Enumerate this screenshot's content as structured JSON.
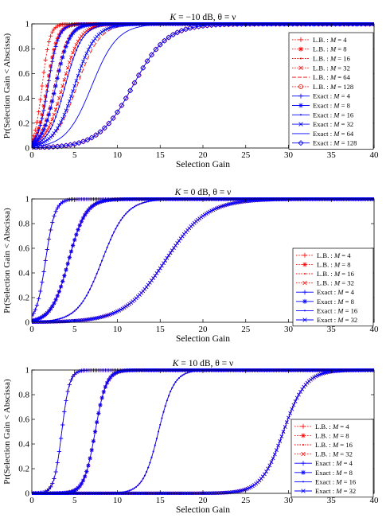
{
  "chart_data": [
    {
      "type": "line",
      "title_parts": [
        "K",
        " = −10 dB, θ = ν"
      ],
      "xlabel": "Selection Gain",
      "ylabel": "Pr(Selection Gain < Abscissa)",
      "xlim": [
        0,
        40
      ],
      "ylim": [
        0,
        1
      ],
      "xticks": [
        "0",
        "5",
        "10",
        "15",
        "20",
        "25",
        "30",
        "35",
        "40"
      ],
      "yticks": [
        "0",
        "0.2",
        "0.4",
        "0.6",
        "0.8",
        "1"
      ],
      "grid": false,
      "legend_position": "right",
      "colors": {
        "lower_bound": "#ff0000",
        "exact": "#0000ff"
      },
      "series": [
        {
          "prefix": "L.B. : ",
          "m": "M",
          "suffix": " = 4",
          "kind": "lb",
          "marker": "plus",
          "median": 1.2,
          "width": 0.45
        },
        {
          "prefix": "L.B. : ",
          "m": "M",
          "suffix": " = 8",
          "kind": "lb",
          "marker": "star",
          "median": 1.8,
          "width": 0.6
        },
        {
          "prefix": "L.B. : ",
          "m": "M",
          "suffix": " = 16",
          "kind": "lb",
          "marker": "dot",
          "median": 2.6,
          "width": 0.8
        },
        {
          "prefix": "L.B. : ",
          "m": "M",
          "suffix": " = 32",
          "kind": "lb",
          "marker": "x",
          "median": 3.6,
          "width": 1.0
        },
        {
          "prefix": "L.B. : ",
          "m": "M",
          "suffix": " = 64",
          "kind": "lb",
          "marker": "dash",
          "median": 5.3,
          "width": 1.3
        },
        {
          "prefix": "L.B. : ",
          "m": "M",
          "suffix": " = 128",
          "kind": "lb",
          "marker": "circle",
          "median": 11.8,
          "width": 2.0
        },
        {
          "prefix": "Exact : ",
          "m": "M",
          "suffix": " = 4",
          "kind": "exact",
          "marker": "plus",
          "median": 1.9,
          "width": 0.6
        },
        {
          "prefix": "Exact : ",
          "m": "M",
          "suffix": " = 8",
          "kind": "exact",
          "marker": "star",
          "median": 2.8,
          "width": 0.8
        },
        {
          "prefix": "Exact : ",
          "m": "M",
          "suffix": " = 16",
          "kind": "exact",
          "marker": "dot",
          "median": 3.9,
          "width": 1.0
        },
        {
          "prefix": "Exact : ",
          "m": "M",
          "suffix": " = 32",
          "kind": "exact",
          "marker": "x",
          "median": 5.0,
          "width": 1.2
        },
        {
          "prefix": "Exact : ",
          "m": "M",
          "suffix": " = 64",
          "kind": "exact",
          "marker": "none",
          "median": 7.0,
          "width": 1.5
        },
        {
          "prefix": "Exact : ",
          "m": "M",
          "suffix": " = 128",
          "kind": "exact",
          "marker": "diamond",
          "median": 11.8,
          "width": 2.0
        }
      ]
    },
    {
      "type": "line",
      "title_parts": [
        "K",
        " = 0 dB, θ = ν"
      ],
      "xlabel": "Selection Gain",
      "ylabel": "Pr(Selection Gain < Abscissa)",
      "xlim": [
        0,
        40
      ],
      "ylim": [
        0,
        1
      ],
      "xticks": [
        "0",
        "5",
        "10",
        "15",
        "20",
        "25",
        "30",
        "35",
        "40"
      ],
      "yticks": [
        "0",
        "0.2",
        "0.4",
        "0.6",
        "0.8",
        "1"
      ],
      "grid": false,
      "legend_position": "bottom-right",
      "colors": {
        "lower_bound": "#ff0000",
        "exact": "#0000ff"
      },
      "series": [
        {
          "prefix": "L.B. : ",
          "m": "M",
          "suffix": " = 4",
          "kind": "lb",
          "marker": "plus",
          "median": 1.6,
          "width": 0.55
        },
        {
          "prefix": "L.B. : ",
          "m": "M",
          "suffix": " = 8",
          "kind": "lb",
          "marker": "star",
          "median": 4.3,
          "width": 1.0
        },
        {
          "prefix": "L.B. : ",
          "m": "M",
          "suffix": " = 16",
          "kind": "lb",
          "marker": "dot",
          "median": 8.2,
          "width": 1.4
        },
        {
          "prefix": "L.B. : ",
          "m": "M",
          "suffix": " = 32",
          "kind": "lb",
          "marker": "x",
          "median": 15.6,
          "width": 2.4
        },
        {
          "prefix": "Exact : ",
          "m": "M",
          "suffix": " = 4",
          "kind": "exact",
          "marker": "plus",
          "median": 1.6,
          "width": 0.55
        },
        {
          "prefix": "Exact : ",
          "m": "M",
          "suffix": " = 8",
          "kind": "exact",
          "marker": "star",
          "median": 4.3,
          "width": 1.0
        },
        {
          "prefix": "Exact : ",
          "m": "M",
          "suffix": " = 16",
          "kind": "exact",
          "marker": "dot",
          "median": 8.2,
          "width": 1.4
        },
        {
          "prefix": "Exact : ",
          "m": "M",
          "suffix": " = 32",
          "kind": "exact",
          "marker": "x",
          "median": 15.6,
          "width": 2.4
        }
      ]
    },
    {
      "type": "line",
      "title_parts": [
        "K",
        " = 10 dB, θ = ν"
      ],
      "xlabel": "Selection Gain",
      "ylabel": "Pr(Selection Gain < Abscissa)",
      "xlim": [
        0,
        40
      ],
      "ylim": [
        0,
        1
      ],
      "xticks": [
        "0",
        "5",
        "10",
        "15",
        "20",
        "25",
        "30",
        "35",
        "40"
      ],
      "yticks": [
        "0",
        "0.2",
        "0.4",
        "0.6",
        "0.8",
        "1"
      ],
      "grid": false,
      "legend_position": "bottom-right",
      "colors": {
        "lower_bound": "#ff0000",
        "exact": "#0000ff"
      },
      "series": [
        {
          "prefix": "L.B. : ",
          "m": "M",
          "suffix": " = 4",
          "kind": "lb",
          "marker": "plus",
          "median": 3.5,
          "width": 0.45
        },
        {
          "prefix": "L.B. : ",
          "m": "M",
          "suffix": " = 8",
          "kind": "lb",
          "marker": "star",
          "median": 7.4,
          "width": 0.65
        },
        {
          "prefix": "L.B. : ",
          "m": "M",
          "suffix": " = 16",
          "kind": "lb",
          "marker": "dot",
          "median": 14.8,
          "width": 0.9
        },
        {
          "prefix": "L.B. : ",
          "m": "M",
          "suffix": " = 32",
          "kind": "lb",
          "marker": "x",
          "median": 29.4,
          "width": 1.3
        },
        {
          "prefix": "Exact : ",
          "m": "M",
          "suffix": " = 4",
          "kind": "exact",
          "marker": "plus",
          "median": 3.5,
          "width": 0.45
        },
        {
          "prefix": "Exact : ",
          "m": "M",
          "suffix": " = 8",
          "kind": "exact",
          "marker": "star",
          "median": 7.4,
          "width": 0.65
        },
        {
          "prefix": "Exact : ",
          "m": "M",
          "suffix": " = 16",
          "kind": "exact",
          "marker": "dot",
          "median": 14.8,
          "width": 0.9
        },
        {
          "prefix": "Exact : ",
          "m": "M",
          "suffix": " = 32",
          "kind": "exact",
          "marker": "x",
          "median": 29.4,
          "width": 1.3
        }
      ]
    }
  ]
}
